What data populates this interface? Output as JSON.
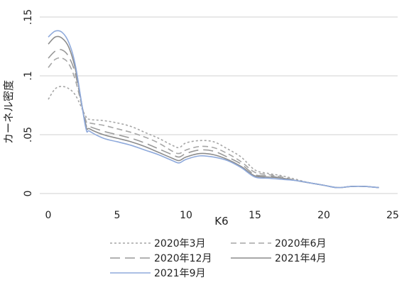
{
  "chart_data": {
    "type": "line",
    "xlabel": "K6",
    "ylabel": "カーネル密度",
    "xlim": [
      0,
      25
    ],
    "ylim": [
      0,
      0.15
    ],
    "x_ticks": [
      0,
      5,
      10,
      15,
      20,
      25
    ],
    "x_tick_labels": [
      "0",
      "5",
      "10",
      "15",
      "20",
      "25"
    ],
    "y_ticks": [
      0,
      0.05,
      0.1,
      0.15
    ],
    "y_tick_labels": [
      "0",
      ".05",
      ".1",
      ".15"
    ],
    "grid": "horizontal",
    "legend_position": "bottom",
    "x": [
      0,
      0.5,
      1,
      1.5,
      2,
      2.7,
      3,
      4,
      5,
      6,
      7,
      8,
      9,
      9.5,
      10,
      11,
      12,
      13,
      14,
      15,
      16,
      17,
      18,
      19,
      20,
      21,
      22,
      23,
      24
    ],
    "series": [
      {
        "name": "2020年3月",
        "color": "#a6a6a6",
        "dash": "3,3",
        "values": [
          0.08,
          0.089,
          0.091,
          0.089,
          0.083,
          0.066,
          0.063,
          0.062,
          0.06,
          0.057,
          0.052,
          0.047,
          0.041,
          0.039,
          0.043,
          0.045,
          0.044,
          0.038,
          0.031,
          0.02,
          0.017,
          0.015,
          0.012,
          0.009,
          0.007,
          0.005,
          0.006,
          0.006,
          0.005
        ]
      },
      {
        "name": "2020年6月",
        "color": "#a6a6a6",
        "dash": "8,5",
        "values": [
          0.107,
          0.114,
          0.115,
          0.11,
          0.095,
          0.063,
          0.06,
          0.058,
          0.055,
          0.052,
          0.048,
          0.043,
          0.036,
          0.034,
          0.037,
          0.04,
          0.039,
          0.034,
          0.027,
          0.018,
          0.016,
          0.014,
          0.011,
          0.009,
          0.007,
          0.005,
          0.006,
          0.006,
          0.005
        ]
      },
      {
        "name": "2020年12月",
        "color": "#999999",
        "dash": "14,7",
        "values": [
          0.115,
          0.121,
          0.122,
          0.116,
          0.1,
          0.06,
          0.057,
          0.053,
          0.05,
          0.047,
          0.043,
          0.038,
          0.033,
          0.031,
          0.034,
          0.037,
          0.036,
          0.031,
          0.025,
          0.016,
          0.015,
          0.013,
          0.011,
          0.009,
          0.007,
          0.005,
          0.006,
          0.006,
          0.005
        ]
      },
      {
        "name": "2021年4月",
        "color": "#8c8c8c",
        "dash": "",
        "values": [
          0.127,
          0.133,
          0.132,
          0.124,
          0.104,
          0.059,
          0.055,
          0.05,
          0.047,
          0.044,
          0.04,
          0.035,
          0.03,
          0.028,
          0.031,
          0.034,
          0.033,
          0.029,
          0.023,
          0.015,
          0.014,
          0.013,
          0.011,
          0.009,
          0.007,
          0.005,
          0.006,
          0.006,
          0.005
        ]
      },
      {
        "name": "2021年9月",
        "color": "#8faadc",
        "dash": "",
        "values": [
          0.133,
          0.138,
          0.137,
          0.128,
          0.107,
          0.057,
          0.053,
          0.047,
          0.044,
          0.041,
          0.037,
          0.033,
          0.028,
          0.026,
          0.029,
          0.032,
          0.031,
          0.028,
          0.022,
          0.014,
          0.013,
          0.012,
          0.011,
          0.009,
          0.007,
          0.005,
          0.006,
          0.006,
          0.005
        ]
      }
    ]
  }
}
